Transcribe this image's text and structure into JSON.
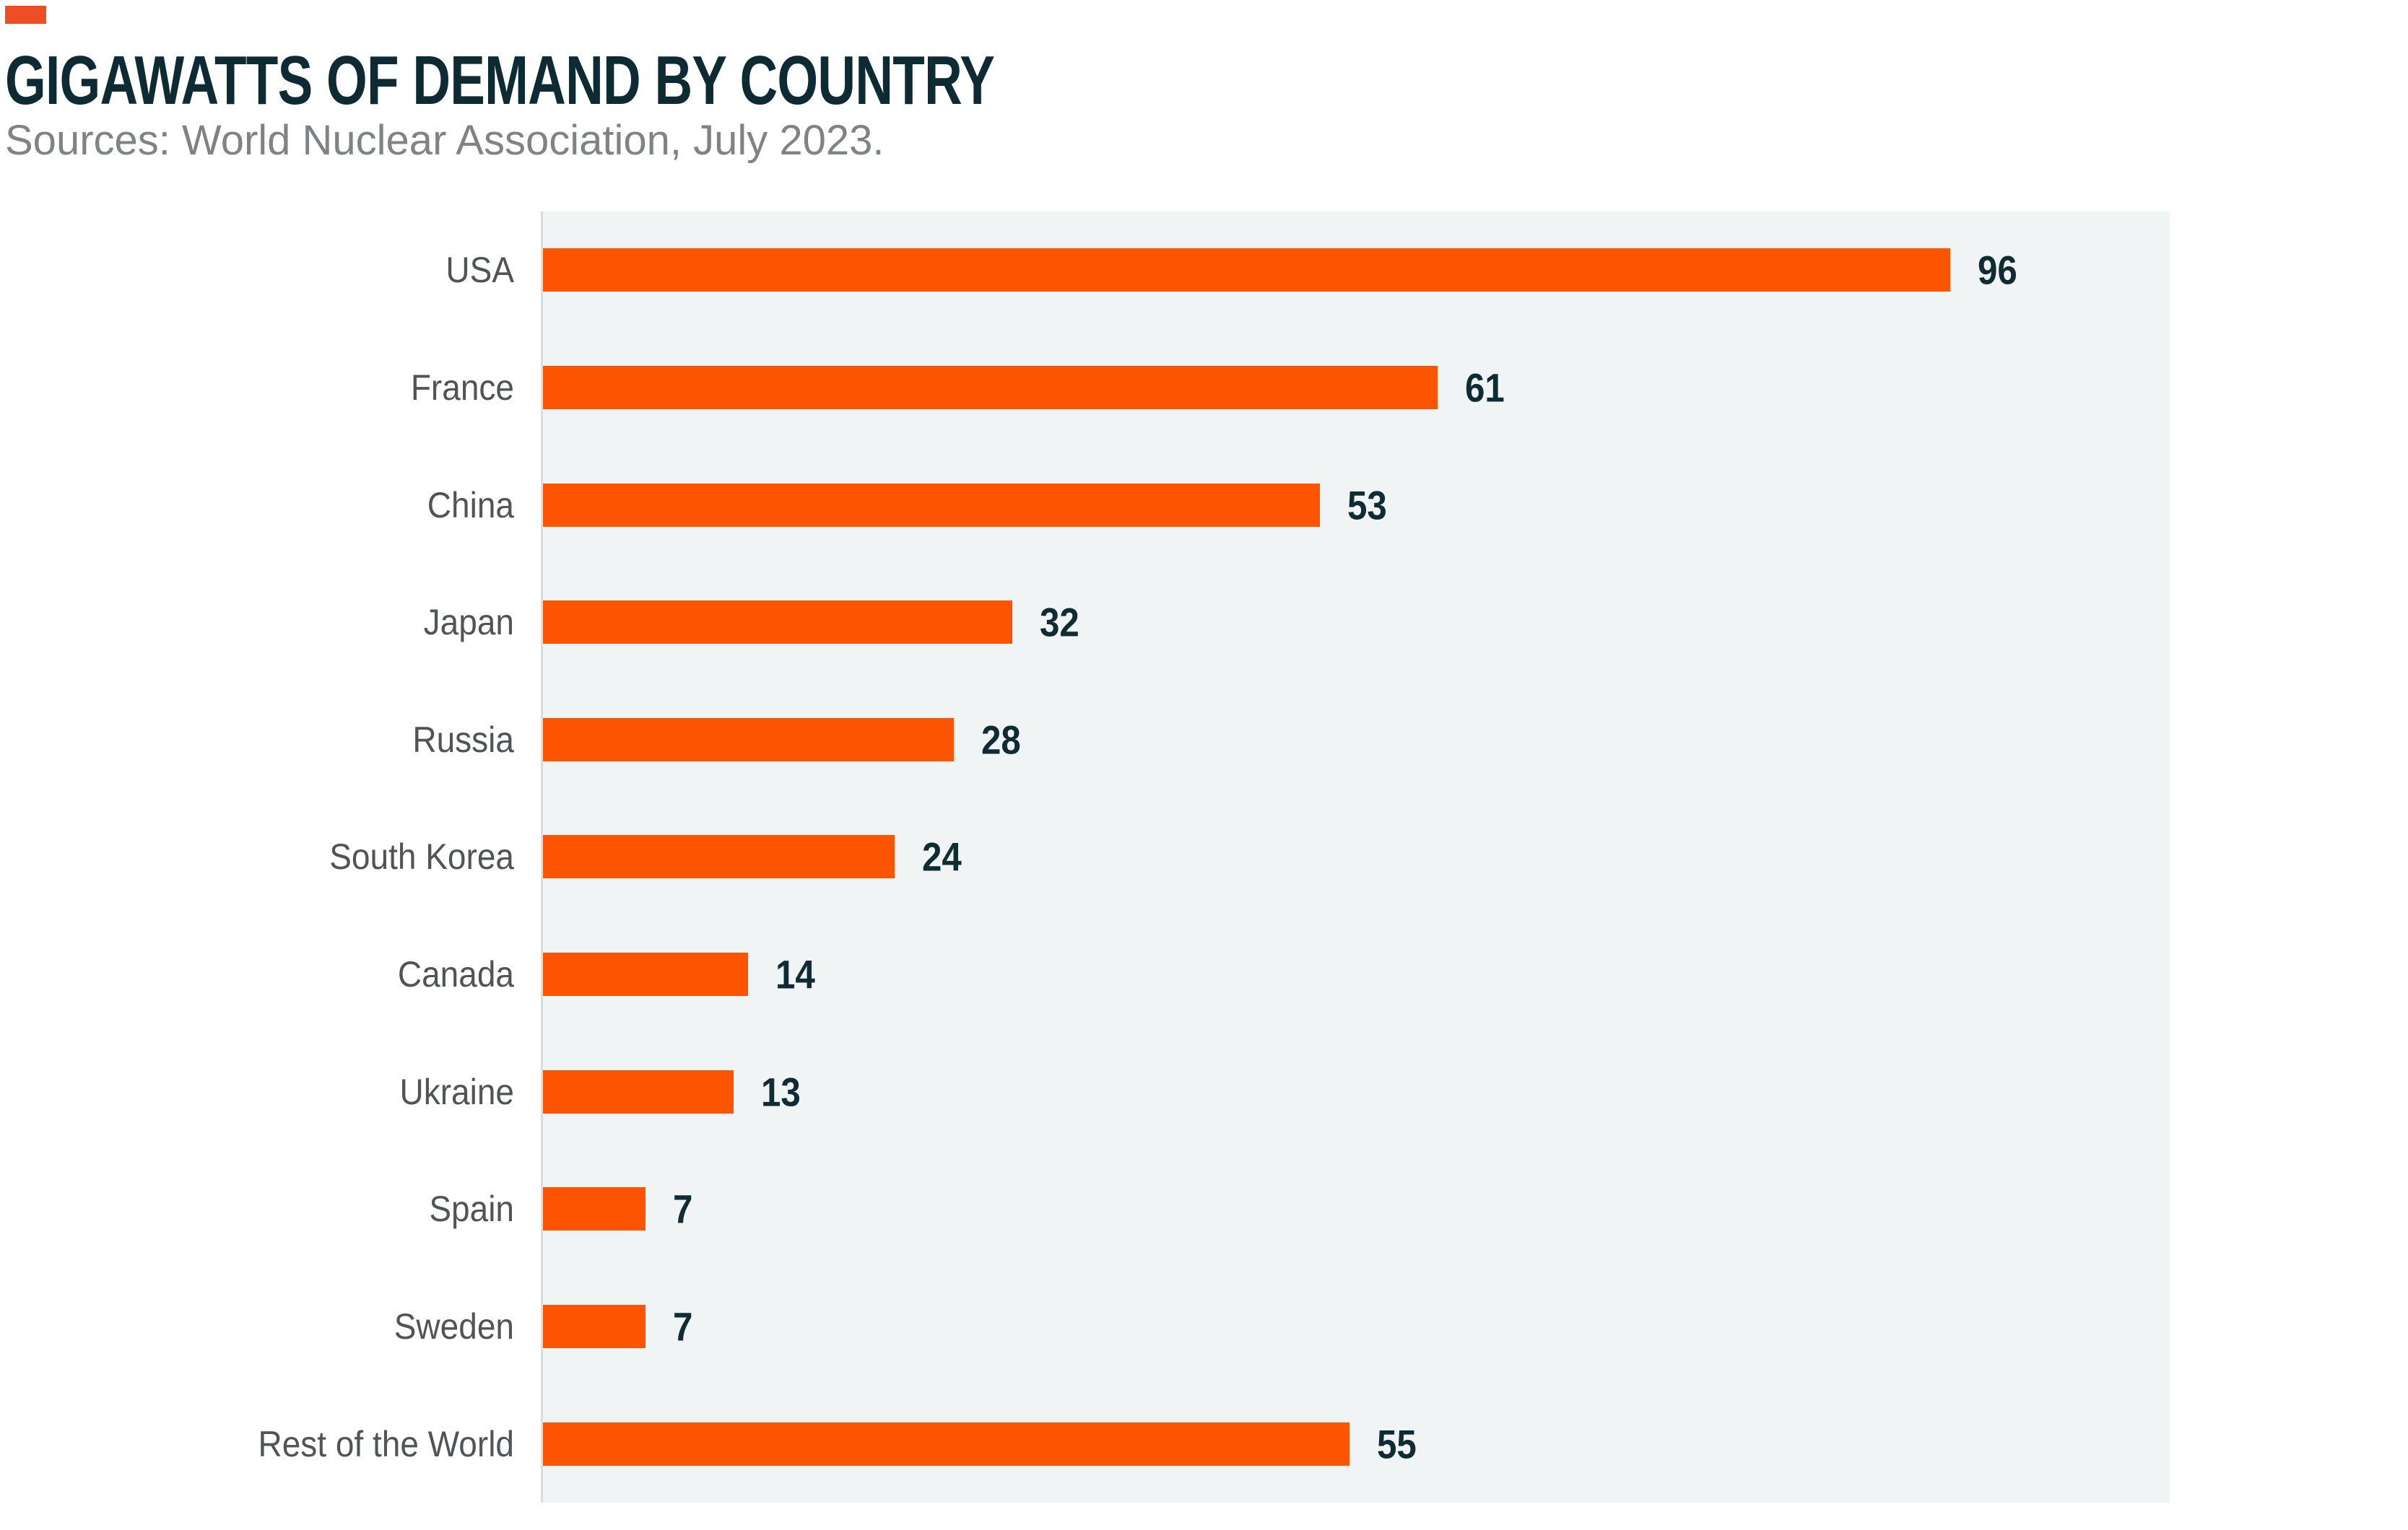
{
  "header": {
    "title": "GIGAWATTS OF DEMAND BY COUNTRY",
    "subtitle": "Sources: World Nuclear Association, July 2023."
  },
  "brand_mark": {
    "shape": "small-orange-rectangle",
    "color": "#EF4E24"
  },
  "colors": {
    "bar": "#FC5400",
    "title_text": "#0E2B33",
    "value_text": "#0F2C34",
    "category_label_text": "#515457",
    "subtitle_text": "#808385",
    "plot_background": "#F0F4F5",
    "axis_line": "#D8DDDE",
    "page_background": "#FFFFFF"
  },
  "chart_data": {
    "type": "bar",
    "orientation": "horizontal",
    "title": "GIGAWATTS OF DEMAND BY COUNTRY",
    "source": "Sources: World Nuclear Association, July 2023.",
    "unit": "gigawatts",
    "categories": [
      "USA",
      "France",
      "China",
      "Japan",
      "Russia",
      "South Korea",
      "Canada",
      "Ukraine",
      "Spain",
      "Sweden",
      "Rest of the World"
    ],
    "values": [
      96,
      61,
      53,
      32,
      28,
      24,
      14,
      13,
      7,
      7,
      55
    ],
    "xlabel": "",
    "ylabel": "",
    "xlim": [
      0,
      111
    ],
    "grid": false,
    "legend": false,
    "value_labels": "end-of-bar",
    "axis_tick_labels": false
  }
}
